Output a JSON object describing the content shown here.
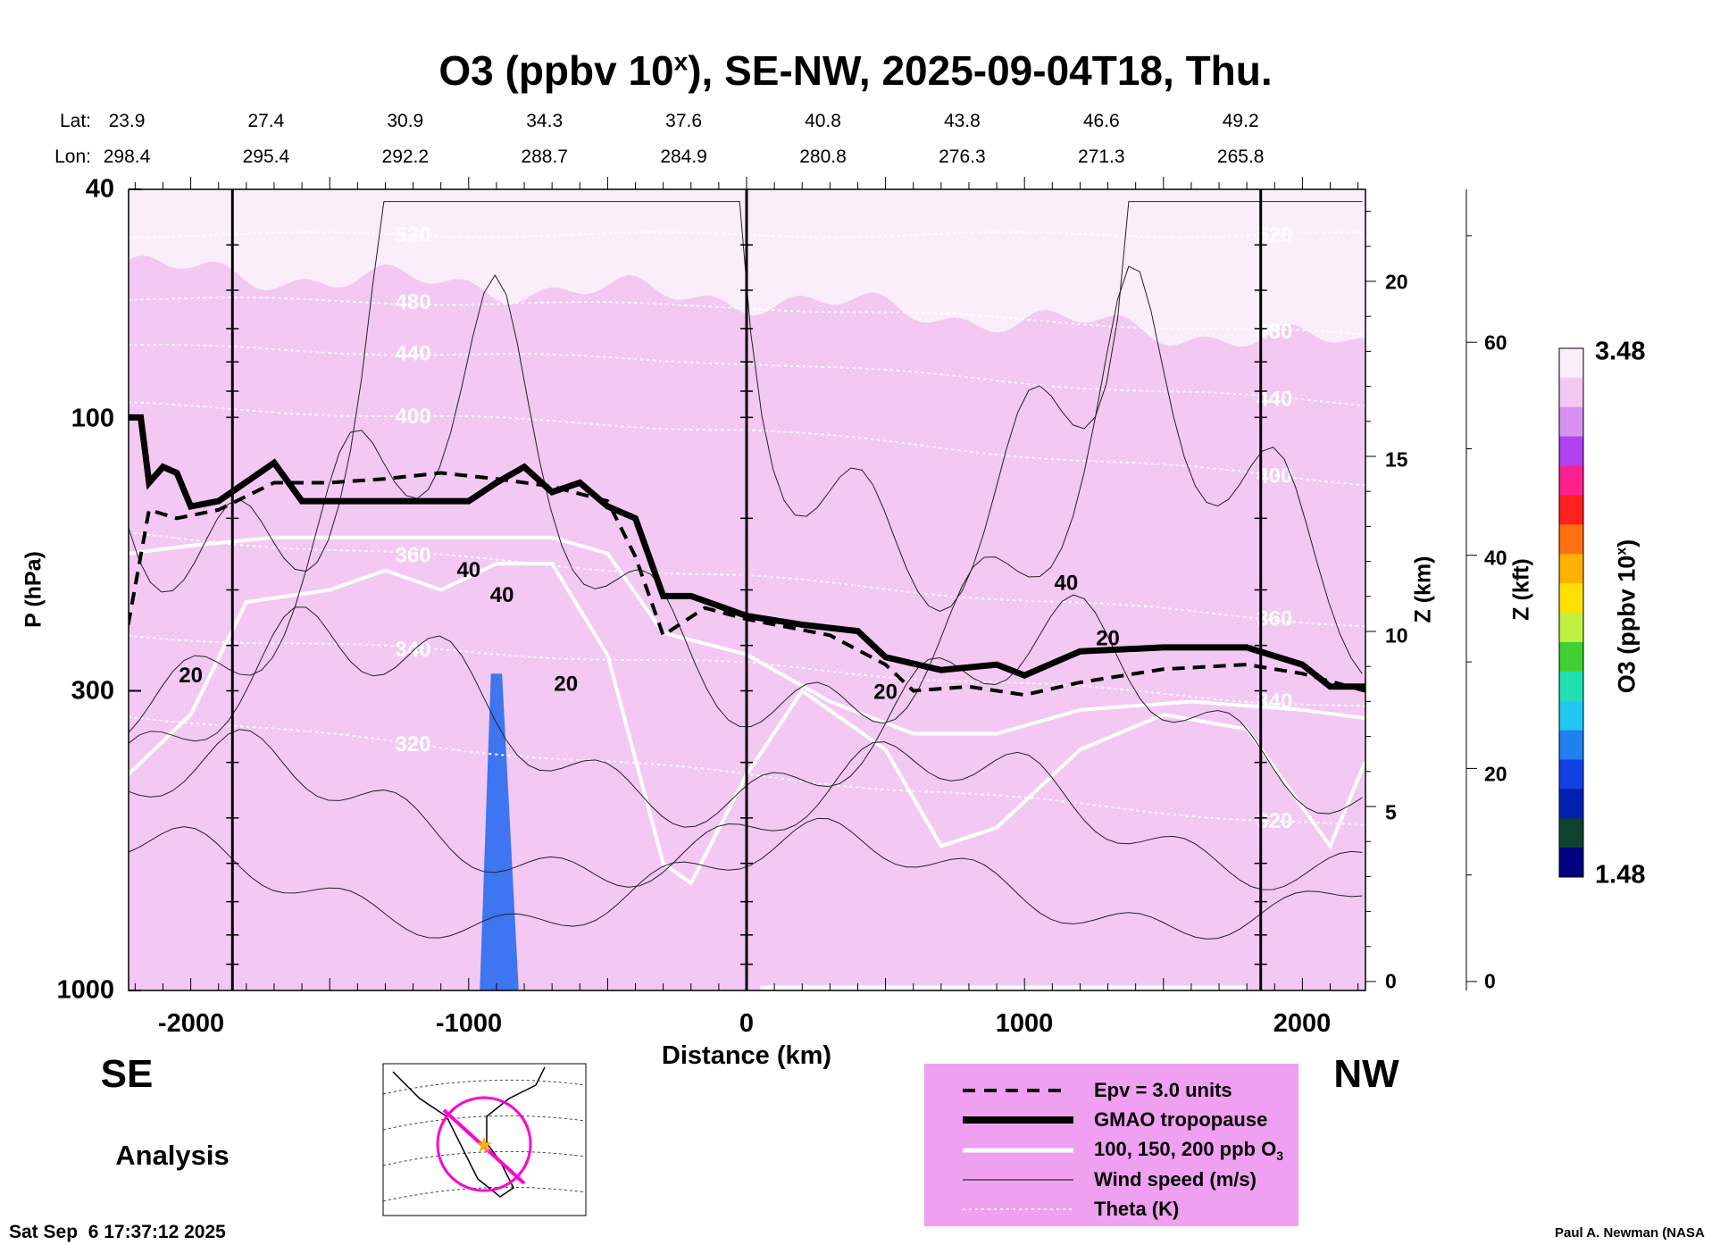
{
  "chart_data": {
    "type": "heatmap",
    "title_main": "O3 (ppbv 10",
    "title_sup": "x",
    "title_rest": "), SE-NW, 2025-09-04T18, Thu.",
    "xlabel": "Distance (km)",
    "ylabel": "P (hPa)",
    "y2label": "Z (km)",
    "y3label": "Z (kft)",
    "xlim": [
      -2225,
      2225
    ],
    "ylim": [
      1000,
      40
    ],
    "xticks": [
      "-2000",
      "-1000",
      "0",
      "1000",
      "2000"
    ],
    "xtick_values": [
      -2000,
      -1000,
      0,
      1000,
      2000
    ],
    "yticks": [
      "40",
      "100",
      "300",
      "1000"
    ],
    "ytick_values": [
      40,
      100,
      300,
      1000
    ],
    "zkm_ticks": [
      "20",
      "15",
      "10",
      "5",
      "0"
    ],
    "zkm_values": [
      20,
      15,
      10,
      5,
      0
    ],
    "zkft_ticks": [
      "60",
      "40",
      "20",
      "0"
    ],
    "zkft_values": [
      60,
      40,
      20,
      0
    ],
    "lat_label": "Lat:",
    "lon_label": "Lon:",
    "lat": [
      "23.9",
      "27.4",
      "30.9",
      "34.3",
      "37.6",
      "40.8",
      "43.8",
      "46.6",
      "49.2"
    ],
    "lon": [
      "298.4",
      "295.4",
      "292.2",
      "288.7",
      "284.9",
      "280.8",
      "276.3",
      "271.3",
      "265.8"
    ],
    "latlon_distances": [
      -2000,
      -1500,
      -1000,
      -500,
      0,
      500,
      1000,
      1500,
      2000
    ],
    "vertical_lines_km": [
      -1850,
      0,
      1850
    ],
    "colorbar": {
      "label": "O3 (ppbv 10",
      "label_sup": "x",
      "label_end": ")",
      "max": "3.48",
      "min": "1.48",
      "colors": [
        "#fbeefb",
        "#f3c8f3",
        "#d890f0",
        "#b040f0",
        "#ff2090",
        "#ff2020",
        "#ff7010",
        "#ffb000",
        "#ffe000",
        "#c0f040",
        "#40d030",
        "#20e0b0",
        "#20c8f0",
        "#2080f0",
        "#1040e0",
        "#0020b0",
        "#104030",
        "#000080"
      ]
    },
    "tropopause": [
      [
        -2225,
        100
      ],
      [
        -2180,
        100
      ],
      [
        -2150,
        130
      ],
      [
        -2100,
        122
      ],
      [
        -2050,
        125
      ],
      [
        -2000,
        143
      ],
      [
        -1900,
        140
      ],
      [
        -1700,
        120
      ],
      [
        -1600,
        140
      ],
      [
        -1000,
        140
      ],
      [
        -900,
        130
      ],
      [
        -800,
        122
      ],
      [
        -700,
        135
      ],
      [
        -600,
        130
      ],
      [
        -500,
        143
      ],
      [
        -400,
        150
      ],
      [
        -300,
        205
      ],
      [
        -200,
        205
      ],
      [
        0,
        222
      ],
      [
        200,
        230
      ],
      [
        400,
        236
      ],
      [
        500,
        262
      ],
      [
        700,
        276
      ],
      [
        900,
        270
      ],
      [
        1000,
        282
      ],
      [
        1200,
        256
      ],
      [
        1500,
        252
      ],
      [
        1800,
        252
      ],
      [
        2000,
        270
      ],
      [
        2100,
        295
      ],
      [
        2225,
        295
      ]
    ],
    "epv": [
      [
        -2225,
        230
      ],
      [
        -2150,
        145
      ],
      [
        -2050,
        150
      ],
      [
        -1900,
        145
      ],
      [
        -1700,
        130
      ],
      [
        -1500,
        130
      ],
      [
        -1300,
        128
      ],
      [
        -1100,
        125
      ],
      [
        -900,
        128
      ],
      [
        -700,
        132
      ],
      [
        -500,
        140
      ],
      [
        -400,
        175
      ],
      [
        -300,
        240
      ],
      [
        -150,
        215
      ],
      [
        0,
        225
      ],
      [
        300,
        240
      ],
      [
        500,
        270
      ],
      [
        600,
        300
      ],
      [
        800,
        295
      ],
      [
        1000,
        305
      ],
      [
        1200,
        290
      ],
      [
        1500,
        275
      ],
      [
        1800,
        270
      ],
      [
        2000,
        280
      ],
      [
        2225,
        300
      ]
    ],
    "theta": [
      {
        "label": "520",
        "p": [
          48,
          48,
          48
        ]
      },
      {
        "label": "480",
        "p": [
          62,
          64,
          72
        ]
      },
      {
        "label": "440",
        "p": [
          75,
          80,
          95
        ]
      },
      {
        "label": "400",
        "p": [
          95,
          105,
          130
        ]
      },
      {
        "label": "360",
        "p": [
          160,
          190,
          230
        ]
      },
      {
        "label": "340",
        "p": [
          240,
          270,
          320
        ]
      },
      {
        "label": "320",
        "p": [
          330,
          420,
          520
        ]
      }
    ],
    "wind_labels": [
      "20",
      "40",
      "20",
      "40",
      "20",
      "40",
      "20"
    ],
    "direction_left": "SE",
    "direction_right": "NW",
    "analysis_label": "Analysis",
    "legend": [
      {
        "label": "Epv = 3.0 units"
      },
      {
        "label": "GMAO tropopause"
      },
      {
        "label": "100, 150, 200 ppb O",
        "sub": "3"
      },
      {
        "label": "Wind speed (m/s)"
      },
      {
        "label": "Theta (K)"
      }
    ],
    "legend_bg": "#f0a0f0",
    "timestamp": "Sat Sep  6 17:37:12 2025",
    "credit": "Paul A. Newman (NASA"
  }
}
